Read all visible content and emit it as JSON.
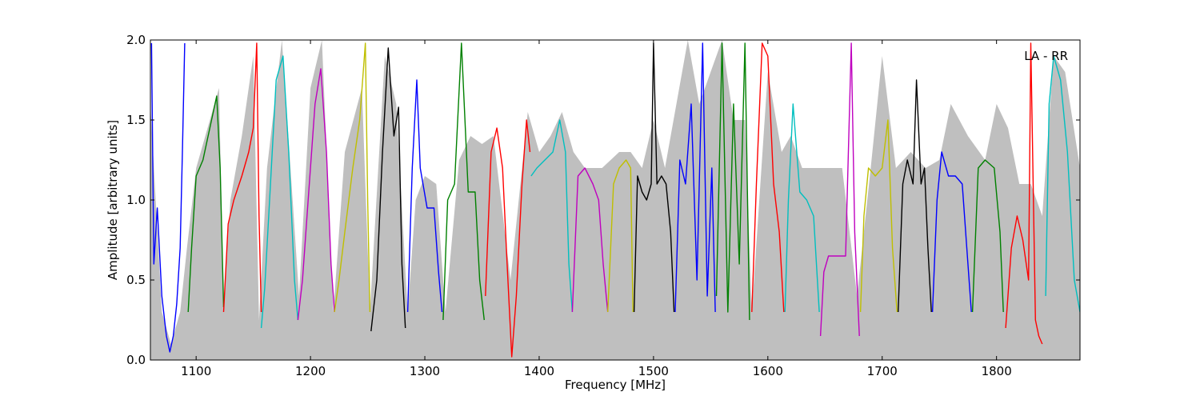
{
  "chart_data": {
    "type": "line",
    "title": "",
    "annotation": "LA - RR",
    "xlabel": "Frequency [MHz]",
    "ylabel": "Amplitude [arbitrary units]",
    "xlim": [
      1060,
      1873
    ],
    "ylim": [
      0.0,
      2.0
    ],
    "x_ticks": [
      1100,
      1200,
      1300,
      1400,
      1500,
      1600,
      1700,
      1800
    ],
    "x_tick_labels": [
      "1100",
      "1200",
      "1300",
      "1400",
      "1500",
      "1600",
      "1700",
      "1800"
    ],
    "y_ticks": [
      0.0,
      0.5,
      1.0,
      1.5,
      2.0
    ],
    "y_tick_labels": [
      "0.0",
      "0.5",
      "1.0",
      "1.5",
      "2.0"
    ],
    "grid": false,
    "legend": "none",
    "background_envelope": {
      "color": "#bfbfbf",
      "x": [
        1060,
        1070,
        1078,
        1086,
        1092,
        1100,
        1110,
        1120,
        1124,
        1130,
        1140,
        1150,
        1155,
        1162,
        1175,
        1190,
        1200,
        1210,
        1220,
        1230,
        1245,
        1252,
        1265,
        1275,
        1285,
        1292,
        1300,
        1310,
        1318,
        1330,
        1340,
        1350,
        1360,
        1375,
        1390,
        1400,
        1410,
        1420,
        1430,
        1440,
        1455,
        1470,
        1480,
        1490,
        1500,
        1510,
        1520,
        1530,
        1540,
        1550,
        1560,
        1570,
        1580,
        1586,
        1600,
        1612,
        1620,
        1630,
        1640,
        1650,
        1665,
        1678,
        1690,
        1700,
        1712,
        1725,
        1738,
        1750,
        1760,
        1775,
        1790,
        1800,
        1810,
        1820,
        1830,
        1840,
        1850,
        1860,
        1873
      ],
      "y": [
        1.6,
        0.3,
        0.1,
        0.3,
        0.7,
        1.2,
        1.45,
        1.7,
        0.35,
        1.0,
        1.4,
        1.9,
        0.25,
        1.2,
        2.0,
        0.4,
        1.7,
        2.0,
        0.3,
        1.3,
        1.7,
        0.3,
        1.9,
        1.6,
        0.3,
        1.0,
        1.15,
        1.1,
        0.3,
        1.25,
        1.4,
        1.35,
        1.4,
        0.5,
        1.55,
        1.3,
        1.4,
        1.55,
        1.3,
        1.2,
        1.2,
        1.3,
        1.3,
        1.2,
        1.5,
        1.2,
        1.6,
        2.0,
        1.6,
        1.8,
        2.0,
        1.5,
        1.5,
        0.3,
        1.8,
        1.3,
        1.4,
        1.2,
        1.2,
        1.2,
        1.2,
        0.4,
        1.2,
        1.9,
        1.2,
        1.3,
        1.2,
        1.25,
        1.6,
        1.4,
        1.25,
        1.6,
        1.45,
        1.1,
        1.1,
        0.9,
        1.9,
        1.8,
        1.2
      ]
    },
    "series": [
      {
        "color": "#0000ff",
        "x": [
          1061,
          1063,
          1066,
          1070,
          1074,
          1077,
          1080,
          1083,
          1086,
          1088,
          1090
        ],
        "y": [
          1.98,
          0.6,
          0.95,
          0.4,
          0.15,
          0.05,
          0.15,
          0.35,
          0.7,
          1.3,
          1.98
        ]
      },
      {
        "color": "#008000",
        "x": [
          1093,
          1096,
          1100,
          1106,
          1112,
          1118,
          1121,
          1124
        ],
        "y": [
          0.3,
          0.7,
          1.15,
          1.25,
          1.45,
          1.65,
          1.2,
          0.33
        ]
      },
      {
        "color": "#ff0000",
        "x": [
          1124,
          1128,
          1133,
          1140,
          1146,
          1150,
          1153,
          1155,
          1157
        ],
        "y": [
          0.3,
          0.85,
          1.0,
          1.15,
          1.3,
          1.45,
          1.98,
          0.9,
          0.3
        ]
      },
      {
        "color": "#00bfbf",
        "x": [
          1157,
          1160,
          1165,
          1170,
          1176,
          1181,
          1186,
          1189
        ],
        "y": [
          0.2,
          0.45,
          1.1,
          1.75,
          1.9,
          1.3,
          0.5,
          0.25
        ]
      },
      {
        "color": "#bf00bf",
        "x": [
          1189,
          1193,
          1198,
          1204,
          1209,
          1214,
          1218,
          1221
        ],
        "y": [
          0.25,
          0.5,
          1.0,
          1.6,
          1.82,
          1.3,
          0.6,
          0.3
        ]
      },
      {
        "color": "#bfbf00",
        "x": [
          1221,
          1225,
          1230,
          1237,
          1243,
          1248,
          1250,
          1252
        ],
        "y": [
          0.3,
          0.5,
          0.8,
          1.2,
          1.5,
          1.98,
          1.0,
          0.3
        ]
      },
      {
        "color": "#000000",
        "x": [
          1253,
          1258,
          1263,
          1268,
          1273,
          1277,
          1280,
          1283
        ],
        "y": [
          0.18,
          0.5,
          1.3,
          1.95,
          1.4,
          1.58,
          0.6,
          0.2
        ]
      },
      {
        "color": "#0000ff",
        "x": [
          1285,
          1289,
          1293,
          1296,
          1302,
          1308,
          1312,
          1315
        ],
        "y": [
          0.3,
          1.2,
          1.75,
          1.2,
          0.95,
          0.95,
          0.55,
          0.3
        ]
      },
      {
        "color": "#008000",
        "x": [
          1316,
          1320,
          1326,
          1332,
          1338,
          1344,
          1348,
          1352
        ],
        "y": [
          0.25,
          1.0,
          1.1,
          1.98,
          1.05,
          1.05,
          0.5,
          0.25
        ]
      },
      {
        "color": "#ff0000",
        "x": [
          1353,
          1358,
          1363,
          1368,
          1372,
          1376,
          1380,
          1385,
          1389,
          1392
        ],
        "y": [
          0.4,
          1.3,
          1.45,
          1.2,
          0.6,
          0.02,
          0.4,
          1.1,
          1.5,
          1.3
        ]
      },
      {
        "color": "#00bfbf",
        "x": [
          1393,
          1398,
          1405,
          1412,
          1418,
          1423,
          1426,
          1429
        ],
        "y": [
          1.15,
          1.2,
          1.25,
          1.3,
          1.5,
          1.3,
          0.6,
          0.3
        ]
      },
      {
        "color": "#bf00bf",
        "x": [
          1429,
          1434,
          1440,
          1447,
          1452,
          1456,
          1460
        ],
        "y": [
          0.3,
          1.15,
          1.2,
          1.1,
          1.0,
          0.6,
          0.3
        ]
      },
      {
        "color": "#bfbf00",
        "x": [
          1460,
          1465,
          1470,
          1476,
          1480,
          1482
        ],
        "y": [
          0.3,
          1.1,
          1.2,
          1.25,
          1.2,
          0.3
        ]
      },
      {
        "color": "#000000",
        "x": [
          1483,
          1486,
          1490,
          1494,
          1498,
          1500,
          1503,
          1507,
          1511,
          1515,
          1518
        ],
        "y": [
          0.3,
          1.15,
          1.05,
          1.0,
          1.1,
          1.98,
          1.1,
          1.15,
          1.1,
          0.8,
          0.3
        ]
      },
      {
        "color": "#0000ff",
        "x": [
          1519,
          1523,
          1528,
          1533,
          1538,
          1543,
          1547,
          1551,
          1554
        ],
        "y": [
          0.3,
          1.25,
          1.1,
          1.6,
          0.5,
          1.98,
          0.4,
          1.2,
          0.3
        ]
      },
      {
        "color": "#008000",
        "x": [
          1555,
          1560,
          1565,
          1570,
          1575,
          1580,
          1584
        ],
        "y": [
          0.4,
          1.98,
          0.3,
          1.6,
          0.6,
          1.98,
          0.25
        ]
      },
      {
        "color": "#ff0000",
        "x": [
          1586,
          1590,
          1595,
          1600,
          1605,
          1610,
          1614
        ],
        "y": [
          0.3,
          1.1,
          1.98,
          1.9,
          1.1,
          0.8,
          0.3
        ]
      },
      {
        "color": "#00bfbf",
        "x": [
          1615,
          1618,
          1622,
          1628,
          1634,
          1640,
          1645
        ],
        "y": [
          0.3,
          1.0,
          1.6,
          1.05,
          1.0,
          0.9,
          0.3
        ]
      },
      {
        "color": "#bf00bf",
        "x": [
          1646,
          1649,
          1653,
          1660,
          1668,
          1673,
          1676,
          1680
        ],
        "y": [
          0.15,
          0.55,
          0.65,
          0.65,
          0.65,
          1.98,
          0.8,
          0.15
        ]
      },
      {
        "color": "#bfbf00",
        "x": [
          1681,
          1684,
          1688,
          1694,
          1700,
          1705,
          1709,
          1713
        ],
        "y": [
          0.3,
          0.9,
          1.2,
          1.15,
          1.2,
          1.5,
          0.7,
          0.3
        ]
      },
      {
        "color": "#000000",
        "x": [
          1714,
          1718,
          1722,
          1727,
          1730,
          1734,
          1737,
          1740,
          1743
        ],
        "y": [
          0.3,
          1.1,
          1.25,
          1.1,
          1.75,
          1.1,
          1.2,
          0.7,
          0.3
        ]
      },
      {
        "color": "#0000ff",
        "x": [
          1744,
          1748,
          1752,
          1758,
          1764,
          1770,
          1774,
          1778
        ],
        "y": [
          0.3,
          1.0,
          1.3,
          1.15,
          1.15,
          1.1,
          0.7,
          0.3
        ]
      },
      {
        "color": "#008000",
        "x": [
          1779,
          1784,
          1790,
          1798,
          1803,
          1806
        ],
        "y": [
          0.3,
          1.2,
          1.25,
          1.2,
          0.8,
          0.3
        ]
      },
      {
        "color": "#ff0000",
        "x": [
          1808,
          1813,
          1818,
          1823,
          1828,
          1830,
          1834,
          1837,
          1840
        ],
        "y": [
          0.2,
          0.7,
          0.9,
          0.75,
          0.5,
          1.98,
          0.25,
          0.15,
          0.1
        ]
      },
      {
        "color": "#00bfbf",
        "x": [
          1843,
          1846,
          1850,
          1856,
          1862,
          1868,
          1873
        ],
        "y": [
          0.4,
          1.6,
          1.9,
          1.75,
          1.3,
          0.5,
          0.3
        ]
      }
    ]
  }
}
